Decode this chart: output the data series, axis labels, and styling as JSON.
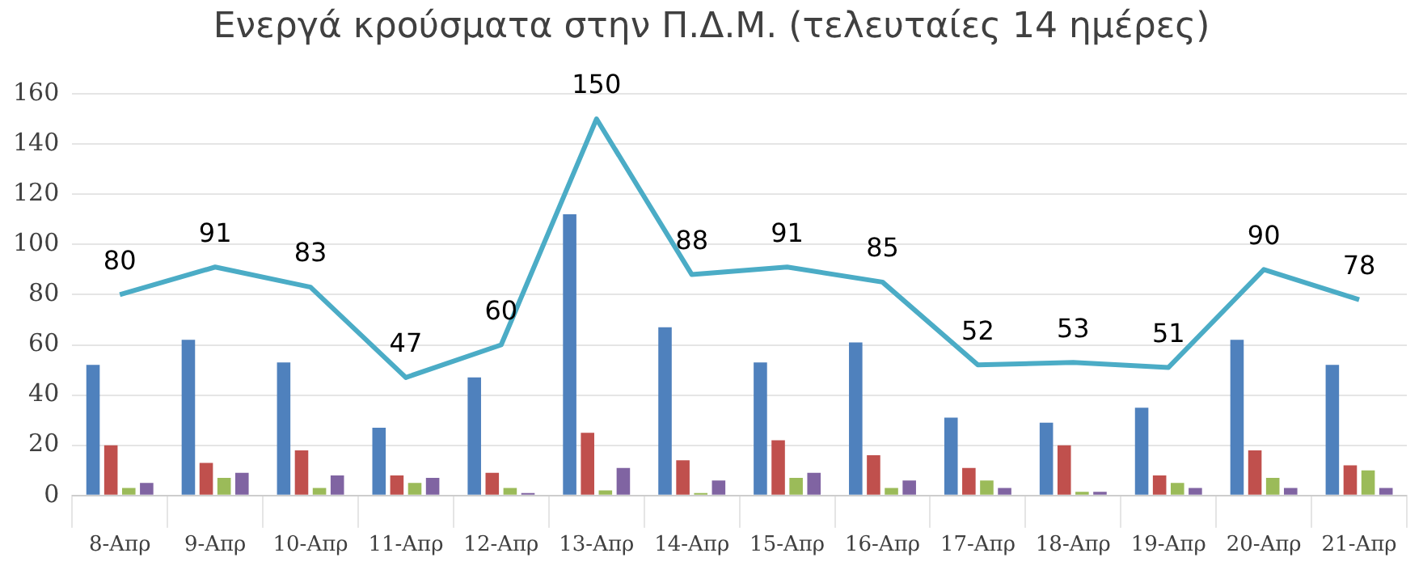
{
  "chart_data": {
    "type": "bar",
    "title": "Ενεργά κρούσματα στην Π.Δ.Μ. (τελευταίες 14 ημέρες)",
    "categories": [
      "8-Απρ",
      "9-Απρ",
      "10-Απρ",
      "11-Απρ",
      "12-Απρ",
      "13-Απρ",
      "14-Απρ",
      "15-Απρ",
      "16-Απρ",
      "17-Απρ",
      "18-Απρ",
      "19-Απρ",
      "20-Απρ",
      "21-Απρ"
    ],
    "series": [
      {
        "color": "#4f81bd",
        "values": [
          52,
          62,
          53,
          27,
          47,
          112,
          67,
          53,
          61,
          31,
          29,
          35,
          62,
          52
        ]
      },
      {
        "color": "#c0504d",
        "values": [
          20,
          13,
          18,
          8,
          9,
          25,
          14,
          22,
          16,
          11,
          20,
          8,
          18,
          12
        ]
      },
      {
        "color": "#9bbb59",
        "values": [
          3,
          7,
          3,
          5,
          3,
          2,
          1,
          7,
          3,
          6,
          1.5,
          5,
          7,
          10
        ]
      },
      {
        "color": "#8064a2",
        "values": [
          5,
          9,
          8,
          7,
          1,
          11,
          6,
          9,
          6,
          3,
          1.5,
          3,
          3,
          3
        ]
      },
      {
        "type": "line",
        "color": "#4bacc6",
        "values": [
          80,
          91,
          83,
          47,
          60,
          150,
          88,
          91,
          85,
          52,
          53,
          51,
          90,
          78
        ],
        "value_labels": [
          "80",
          "91",
          "83",
          "47",
          "60",
          "150",
          "88",
          "91",
          "85",
          "52",
          "53",
          "51",
          "90",
          "78"
        ]
      }
    ],
    "ylim": [
      0,
      160
    ],
    "yticks": [
      0,
      20,
      40,
      60,
      80,
      100,
      120,
      140,
      160
    ],
    "grid": "y",
    "legend": false,
    "marker": "none"
  }
}
